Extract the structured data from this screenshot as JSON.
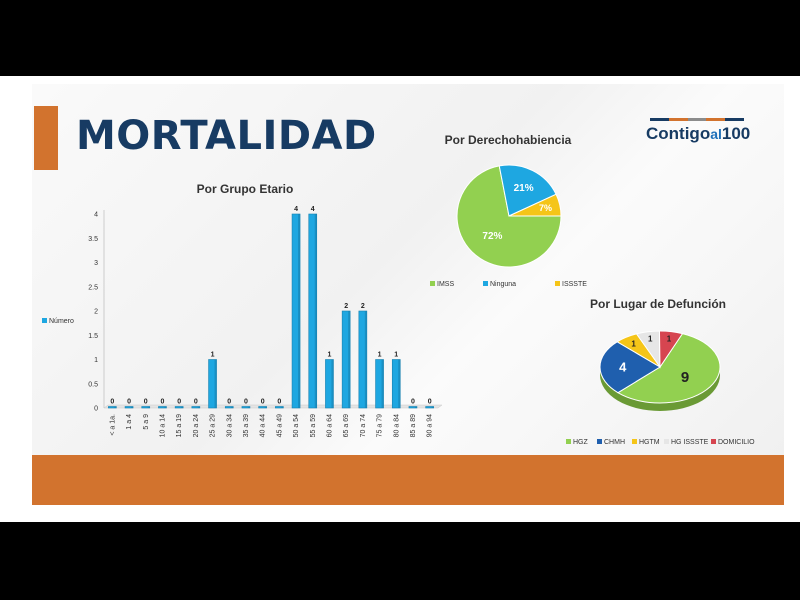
{
  "page": {
    "title": "MORTALIDAD"
  },
  "logo": {
    "text_main": "Contigo",
    "text_sub": "al",
    "text_num": "100",
    "bar_colors": [
      "#173b63",
      "#d2732e",
      "#8c8c8c",
      "#d2732e",
      "#173b63"
    ]
  },
  "colors": {
    "accent": "#d2732e",
    "title": "#173b63",
    "bar": "#1ea7e1",
    "bar_dark": "#1681b0"
  },
  "chart_data": [
    {
      "type": "bar",
      "title": "Por Grupo Etario",
      "legend": [
        "Número"
      ],
      "legend_position": "left",
      "ylim": [
        0,
        4
      ],
      "yticks": [
        "0",
        "0.5",
        "1",
        "1.5",
        "2",
        "2.5",
        "3",
        "3.5",
        "4"
      ],
      "categories": [
        "< a 1a.",
        "1 a 4",
        "5 a 9",
        "10 a 14",
        "15 a 19",
        "20 a 24",
        "25 a 29",
        "30 a 34",
        "35 a 39",
        "40 a 44",
        "45 a 49",
        "50 a 54",
        "55 a 59",
        "60 a 64",
        "65 a 69",
        "70 a 74",
        "75 a 79",
        "80 a 84",
        "85 a 89",
        "90 a 94"
      ],
      "values": [
        0,
        0,
        0,
        0,
        0,
        0,
        1,
        0,
        0,
        0,
        0,
        4,
        4,
        1,
        2,
        2,
        1,
        1,
        0,
        0
      ],
      "value_labels": [
        "0",
        "0",
        "0",
        "0",
        "0",
        "0",
        "1",
        "0",
        "0",
        "0",
        "0",
        "4",
        "4",
        "1",
        "2",
        "2",
        "1",
        "1",
        "0",
        "0"
      ]
    },
    {
      "type": "pie",
      "title": "Por Derechohabiencia",
      "categories": [
        "IMSS",
        "Ninguna",
        "ISSSTE"
      ],
      "values": [
        72,
        21,
        7
      ],
      "value_labels": [
        "72%",
        "21%",
        "7%"
      ],
      "colors": [
        "#92d050",
        "#1ea7e1",
        "#f5c518"
      ],
      "legend_position": "bottom"
    },
    {
      "type": "pie",
      "title": "Por Lugar de Defunción",
      "categories": [
        "HGZ",
        "CHMH",
        "HGTM",
        "HG ISSSTE",
        "DOMICILIO"
      ],
      "values": [
        9,
        4,
        1,
        1,
        1
      ],
      "value_labels": [
        "9",
        "4",
        "1",
        "1",
        "1"
      ],
      "colors": [
        "#92d050",
        "#1f5fae",
        "#f5c518",
        "#e6e6e6",
        "#d64550"
      ],
      "legend_position": "bottom"
    }
  ]
}
